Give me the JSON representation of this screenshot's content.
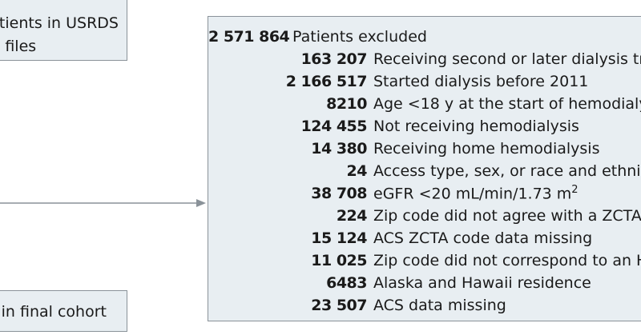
{
  "source_box": {
    "lines": [
      "atients in USRDS",
      "l files"
    ]
  },
  "final_box": {
    "text": "in final cohort"
  },
  "exclusion_box": {
    "total": {
      "count": "2 571 864",
      "label": "Patients excluded"
    },
    "items": [
      {
        "count": "163 207",
        "label": "Receiving second or later dialysis tr"
      },
      {
        "count": "2 166 517",
        "label": "Started dialysis before 2011"
      },
      {
        "count": "8210",
        "label": "Age <18 y at the start of hemodialy"
      },
      {
        "count": "124 455",
        "label": "Not receiving hemodialysis"
      },
      {
        "count": "14 380",
        "label": "Receiving home hemodialysis"
      },
      {
        "count": "24",
        "label": "Access type, sex, or race and ethnic"
      },
      {
        "count": "38 708",
        "label": "eGFR <20 mL/min/1.73 m",
        "sup": "2"
      },
      {
        "count": "224",
        "label": "Zip code did not agree with a ZCTA"
      },
      {
        "count": "15 124",
        "label": "ACS ZCTA code data missing"
      },
      {
        "count": "11 025",
        "label": "Zip code did not correspond to an H"
      },
      {
        "count": "6483",
        "label": "Alaska and Hawaii residence"
      },
      {
        "count": "23 507",
        "label": "ACS data missing"
      }
    ]
  }
}
